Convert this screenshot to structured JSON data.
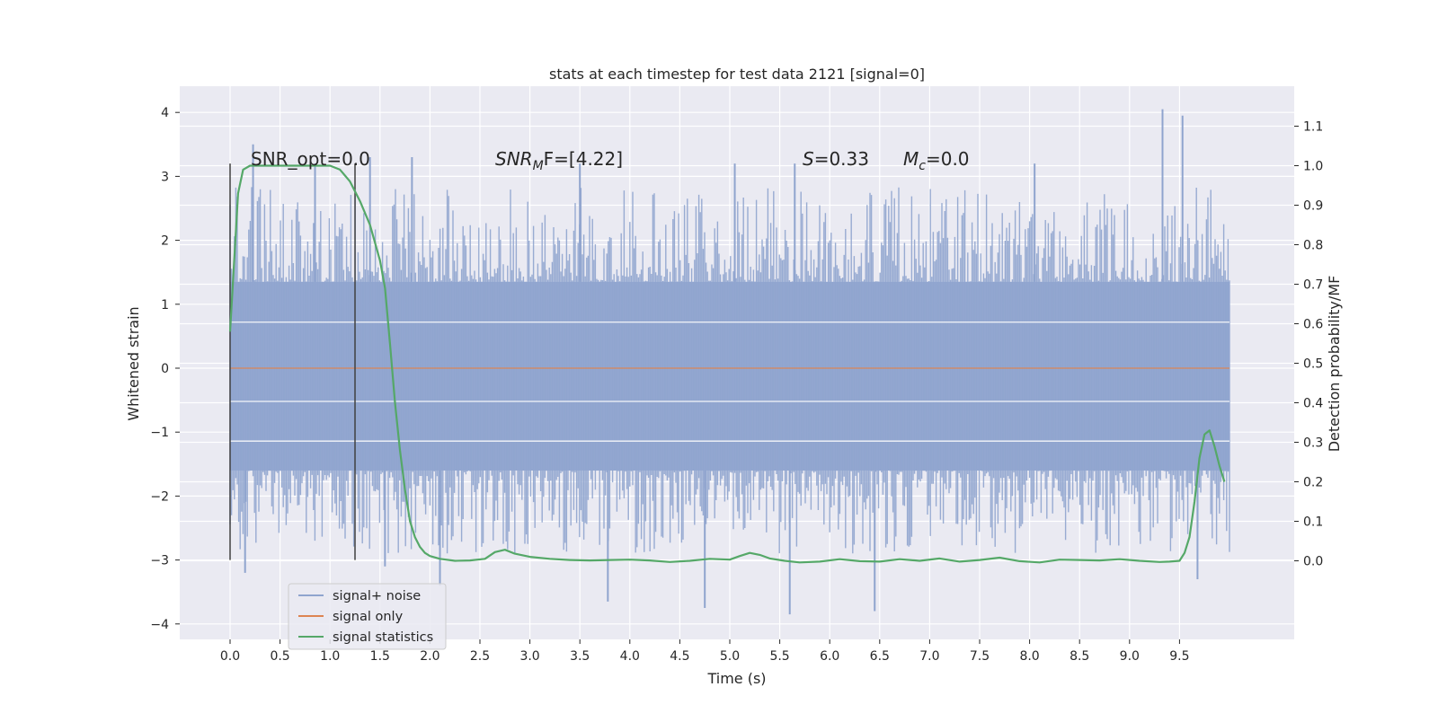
{
  "chart_data": {
    "type": "line",
    "title": "stats at each timestep for test data 2121 [signal=0]",
    "xlabel": "Time (s)",
    "ylabel_left": "Whitened strain",
    "ylabel_right": "Detection probability/MF",
    "xlim": [
      -0.5,
      10.5
    ],
    "ylim_left": [
      -4.2,
      4.4
    ],
    "ylim_right": [
      -0.2,
      1.2
    ],
    "x_ticks": [
      "0.0",
      "0.5",
      "1.0",
      "1.5",
      "2.0",
      "2.5",
      "3.0",
      "3.5",
      "4.0",
      "4.5",
      "5.0",
      "5.5",
      "6.0",
      "6.5",
      "7.0",
      "7.5",
      "8.0",
      "8.5",
      "9.0",
      "9.5"
    ],
    "y_left_ticks": [
      "4",
      "3",
      "2",
      "1",
      "0",
      "−1",
      "−2",
      "−3",
      "−4"
    ],
    "y_right_ticks": [
      "1.1",
      "1.0",
      "0.9",
      "0.8",
      "0.7",
      "0.6",
      "0.5",
      "0.4",
      "0.3",
      "0.2",
      "0.1",
      "0.0"
    ],
    "grid": true,
    "legend_position": "lower-left",
    "colors": {
      "background": "#eaeaf2",
      "grid": "#ffffff",
      "noise": "#8fa4ce",
      "signal_only": "#dd8452",
      "statistics": "#55a868",
      "vlines": "#404040"
    },
    "annotations": [
      {
        "text": "SNR_opt=0.0",
        "italic": false
      },
      {
        "text": "SNRₘF=[4.22]",
        "main": "SNR",
        "sub": "M",
        "tail": "F=[4.22]"
      },
      {
        "text": "S=0.33",
        "main": "S",
        "tail": "=0.33"
      },
      {
        "text": "Mc=0.0",
        "main": "M",
        "sub": "c",
        "tail": "=0.0"
      }
    ],
    "vertical_lines": [
      0.0,
      1.25
    ],
    "series": [
      {
        "name": "signal+ noise",
        "axis": "left",
        "description": "noise band",
        "x_range": [
          0.0,
          10.0
        ],
        "core_band": [
          -1.6,
          1.35
        ],
        "extreme_range": [
          -3.8,
          4.05
        ],
        "spikes": [
          {
            "x": 0.23,
            "y": 3.5
          },
          {
            "x": 0.85,
            "y": 3.2
          },
          {
            "x": 1.4,
            "y": 3.3
          },
          {
            "x": 1.82,
            "y": 3.3
          },
          {
            "x": 3.5,
            "y": 3.2
          },
          {
            "x": 5.05,
            "y": 3.2
          },
          {
            "x": 5.65,
            "y": 3.2
          },
          {
            "x": 8.05,
            "y": 3.2
          },
          {
            "x": 9.33,
            "y": 4.05
          },
          {
            "x": 9.53,
            "y": 3.95
          },
          {
            "x": 0.15,
            "y": -3.2
          },
          {
            "x": 1.55,
            "y": -3.1
          },
          {
            "x": 3.78,
            "y": -3.65
          },
          {
            "x": 4.75,
            "y": -3.75
          },
          {
            "x": 5.6,
            "y": -3.85
          },
          {
            "x": 6.45,
            "y": -3.8
          },
          {
            "x": 9.68,
            "y": -3.3
          },
          {
            "x": 2.1,
            "y": -3.4
          }
        ]
      },
      {
        "name": "signal only",
        "axis": "left",
        "x": [
          0.0,
          10.0
        ],
        "y": [
          0.0,
          0.0
        ]
      },
      {
        "name": "signal statistics",
        "axis": "right",
        "x": [
          0.0,
          0.05,
          0.08,
          0.13,
          0.2,
          0.3,
          0.5,
          0.7,
          0.9,
          1.0,
          1.1,
          1.2,
          1.3,
          1.4,
          1.5,
          1.55,
          1.6,
          1.65,
          1.7,
          1.75,
          1.8,
          1.85,
          1.9,
          1.95,
          2.0,
          2.1,
          2.25,
          2.4,
          2.55,
          2.65,
          2.75,
          2.85,
          3.0,
          3.2,
          3.4,
          3.6,
          3.8,
          4.0,
          4.2,
          4.4,
          4.6,
          4.8,
          5.0,
          5.1,
          5.2,
          5.3,
          5.4,
          5.55,
          5.7,
          5.9,
          6.1,
          6.3,
          6.5,
          6.7,
          6.9,
          7.1,
          7.3,
          7.5,
          7.7,
          7.9,
          8.1,
          8.3,
          8.5,
          8.7,
          8.9,
          9.1,
          9.3,
          9.4,
          9.5,
          9.55,
          9.6,
          9.65,
          9.7,
          9.75,
          9.8,
          9.85,
          9.9,
          9.95
        ],
        "y": [
          0.58,
          0.8,
          0.93,
          0.99,
          1.0,
          1.0,
          1.0,
          1.0,
          1.0,
          1.0,
          0.99,
          0.96,
          0.91,
          0.85,
          0.76,
          0.69,
          0.55,
          0.4,
          0.28,
          0.18,
          0.1,
          0.06,
          0.035,
          0.02,
          0.012,
          0.005,
          0.0,
          0.001,
          0.005,
          0.022,
          0.028,
          0.018,
          0.01,
          0.005,
          0.002,
          0.001,
          0.002,
          0.003,
          0.001,
          -0.003,
          0.0,
          0.005,
          0.003,
          0.012,
          0.02,
          0.015,
          0.006,
          0.0,
          -0.004,
          -0.002,
          0.004,
          -0.001,
          -0.002,
          0.004,
          0.0,
          0.006,
          -0.002,
          0.002,
          0.008,
          -0.001,
          -0.004,
          0.003,
          0.002,
          0.001,
          0.004,
          0.0,
          -0.003,
          -0.002,
          0.0,
          0.02,
          0.06,
          0.15,
          0.26,
          0.32,
          0.33,
          0.29,
          0.24,
          0.2
        ]
      }
    ]
  }
}
